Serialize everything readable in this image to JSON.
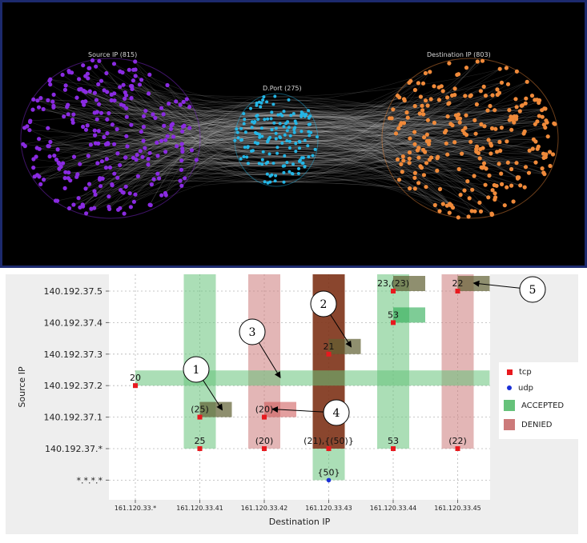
{
  "top_graph": {
    "clusters": [
      {
        "label": "Source IP (815)",
        "color": "#8a2be2"
      },
      {
        "label": "D.Port (275)",
        "color": "#24b6e6"
      },
      {
        "label": "Destination IP (803)",
        "color": "#f08a3a"
      }
    ],
    "background": "#000000",
    "edge_color": "#cfcfcf"
  },
  "chart_data": {
    "type": "scatter",
    "xlabel": "Destination IP",
    "ylabel": "Source IP",
    "categories_x": [
      "161.120.33.*",
      "161.120.33.41",
      "161.120.33.42",
      "161.120.33.43",
      "161.120.33.44",
      "161.120.33.45"
    ],
    "categories_y": [
      "140.192.37.5",
      "140.192.37.4",
      "140.192.37.3",
      "140.192.37.2",
      "140.192.37.1",
      "140.192.37.*",
      "*.*.*.*"
    ],
    "legend": [
      {
        "label": "tcp",
        "color": "#e8191e",
        "kind": "square"
      },
      {
        "label": "udp",
        "color": "#1a2fd6",
        "kind": "dot"
      },
      {
        "label": "ACCEPTED",
        "color": "#66c27a",
        "kind": "box"
      },
      {
        "label": "DENIED",
        "color": "#cc7a7a",
        "kind": "box"
      }
    ],
    "bands": [
      {
        "type": "vertical",
        "x": "161.120.33.41",
        "from": "140.192.37.5",
        "to": "140.192.37.*",
        "status": "ACCEPTED"
      },
      {
        "type": "vertical",
        "x": "161.120.33.42",
        "from": "140.192.37.5",
        "to": "140.192.37.*",
        "status": "DENIED"
      },
      {
        "type": "vertical",
        "x": "161.120.33.43",
        "from": "140.192.37.5",
        "to": "140.192.37.*",
        "status": "DENIED-DARK"
      },
      {
        "type": "vertical",
        "x": "161.120.33.43",
        "from": "140.192.37.*",
        "to": "*.*.*.*",
        "status": "ACCEPTED"
      },
      {
        "type": "vertical",
        "x": "161.120.33.44",
        "from": "140.192.37.5",
        "to": "140.192.37.*",
        "status": "ACCEPTED"
      },
      {
        "type": "vertical",
        "x": "161.120.33.45",
        "from": "140.192.37.5",
        "to": "140.192.37.*",
        "status": "DENIED"
      },
      {
        "type": "horizontal",
        "y": "140.192.37.2",
        "from": "161.120.33.*",
        "to": "161.120.33.45",
        "status": "ACCEPTED"
      }
    ],
    "highlights": [
      {
        "x": "161.120.33.41",
        "y": "140.192.37.1",
        "status": "OVERLAP"
      },
      {
        "x": "161.120.33.42",
        "y": "140.192.37.1",
        "status": "DENIED-STRONG"
      },
      {
        "x": "161.120.33.43",
        "y": "140.192.37.3",
        "status": "OVERLAP"
      },
      {
        "x": "161.120.33.44",
        "y": "140.192.37.5",
        "status": "OVERLAP"
      },
      {
        "x": "161.120.33.44",
        "y": "140.192.37.4",
        "status": "ACCEPTED-STRONG"
      },
      {
        "x": "161.120.33.45",
        "y": "140.192.37.5",
        "status": "OVERLAP"
      }
    ],
    "points": [
      {
        "x": "161.120.33.*",
        "y": "140.192.37.2",
        "label": "20",
        "proto": "tcp"
      },
      {
        "x": "161.120.33.41",
        "y": "140.192.37.1",
        "label": "(25)",
        "proto": "tcp"
      },
      {
        "x": "161.120.33.41",
        "y": "140.192.37.*",
        "label": "25",
        "proto": "tcp"
      },
      {
        "x": "161.120.33.42",
        "y": "140.192.37.1",
        "label": "(20)",
        "proto": "tcp"
      },
      {
        "x": "161.120.33.42",
        "y": "140.192.37.*",
        "label": "(20)",
        "proto": "tcp"
      },
      {
        "x": "161.120.33.43",
        "y": "140.192.37.3",
        "label": "21",
        "proto": "tcp"
      },
      {
        "x": "161.120.33.43",
        "y": "140.192.37.*",
        "label": "(21),{(50)}",
        "proto": "tcp"
      },
      {
        "x": "161.120.33.43",
        "y": "*.*.*.*",
        "label": "{50}",
        "proto": "udp"
      },
      {
        "x": "161.120.33.44",
        "y": "140.192.37.5",
        "label": "23,(23)",
        "proto": "tcp"
      },
      {
        "x": "161.120.33.44",
        "y": "140.192.37.4",
        "label": "53",
        "proto": "tcp"
      },
      {
        "x": "161.120.33.44",
        "y": "140.192.37.*",
        "label": "53",
        "proto": "tcp"
      },
      {
        "x": "161.120.33.45",
        "y": "140.192.37.5",
        "label": "22",
        "proto": "tcp"
      },
      {
        "x": "161.120.33.45",
        "y": "140.192.37.*",
        "label": "(22)",
        "proto": "tcp"
      }
    ],
    "callouts": [
      {
        "number": "1",
        "target": {
          "x": "161.120.33.41",
          "y": "140.192.37.1"
        }
      },
      {
        "number": "2",
        "target": {
          "x": "161.120.33.43",
          "y": "140.192.37.3"
        }
      },
      {
        "number": "3",
        "target": {
          "x": "161.120.33.42",
          "y": "140.192.37.2"
        }
      },
      {
        "number": "4",
        "target": {
          "x": "161.120.33.42",
          "y": "140.192.37.1"
        }
      },
      {
        "number": "5",
        "target": {
          "x": "161.120.33.45",
          "y": "140.192.37.5"
        }
      }
    ],
    "grid": true
  }
}
